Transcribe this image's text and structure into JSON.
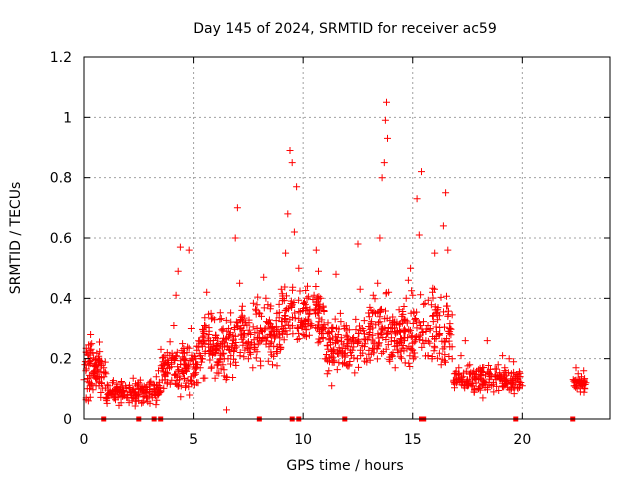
{
  "chart_data": {
    "type": "scatter",
    "title": "Day 145 of 2024, SRMTID for receiver ac59",
    "xlabel": "GPS time / hours",
    "ylabel": "SRMTID / TECUs",
    "xlim": [
      0,
      24
    ],
    "ylim": [
      0,
      1.2
    ],
    "xticks": [
      0,
      5,
      10,
      15,
      20
    ],
    "yticks": [
      0,
      0.2,
      0.4,
      0.6,
      0.8,
      1,
      1.2
    ],
    "ytick_labels": [
      "0",
      "0.2",
      "0.4",
      "0.6",
      "0.8",
      "1",
      "1.2"
    ],
    "grid": true,
    "marker": "+",
    "color": "#ff0000",
    "series": [
      {
        "name": "SRMTID",
        "points": [
          [
            0.0,
            0.13
          ],
          [
            0.1,
            0.07
          ],
          [
            0.15,
            0.1
          ],
          [
            0.2,
            0.06
          ],
          [
            0.25,
            0.12
          ],
          [
            0.3,
            0.28
          ],
          [
            0.35,
            0.25
          ],
          [
            0.4,
            0.22
          ],
          [
            0.45,
            0.15
          ],
          [
            0.5,
            0.18
          ],
          [
            0.55,
            0.11
          ],
          [
            0.6,
            0.16
          ],
          [
            0.7,
            0.14
          ],
          [
            0.8,
            0.12
          ],
          [
            0.9,
            0.17
          ],
          [
            1.0,
            0.15
          ],
          [
            1.1,
            0.11
          ],
          [
            1.2,
            0.09
          ],
          [
            1.3,
            0.12
          ],
          [
            1.4,
            0.07
          ],
          [
            1.5,
            0.1
          ],
          [
            1.6,
            0.08
          ],
          [
            1.7,
            0.12
          ],
          [
            1.8,
            0.09
          ],
          [
            1.9,
            0.11
          ],
          [
            2.0,
            0.07
          ],
          [
            2.1,
            0.1
          ],
          [
            2.2,
            0.06
          ],
          [
            2.3,
            0.09
          ],
          [
            2.4,
            0.08
          ],
          [
            2.5,
            0.12
          ],
          [
            2.6,
            0.1
          ],
          [
            2.7,
            0.06
          ],
          [
            2.8,
            0.09
          ],
          [
            2.9,
            0.07
          ],
          [
            3.0,
            0.12
          ],
          [
            3.1,
            0.08
          ],
          [
            3.2,
            0.1
          ],
          [
            3.3,
            0.14
          ],
          [
            3.4,
            0.16
          ],
          [
            3.5,
            0.09
          ],
          [
            3.6,
            0.18
          ],
          [
            3.7,
            0.13
          ],
          [
            3.8,
            0.22
          ],
          [
            3.9,
            0.17
          ],
          [
            4.0,
            0.2
          ],
          [
            4.1,
            0.31
          ],
          [
            4.2,
            0.41
          ],
          [
            4.3,
            0.49
          ],
          [
            4.4,
            0.57
          ],
          [
            4.5,
            0.25
          ],
          [
            4.6,
            0.18
          ],
          [
            4.7,
            0.22
          ],
          [
            4.8,
            0.56
          ],
          [
            4.9,
            0.3
          ],
          [
            5.0,
            0.15
          ],
          [
            5.1,
            0.2
          ],
          [
            5.2,
            0.12
          ],
          [
            5.3,
            0.17
          ],
          [
            5.4,
            0.24
          ],
          [
            5.5,
            0.31
          ],
          [
            5.6,
            0.42
          ],
          [
            5.7,
            0.28
          ],
          [
            5.8,
            0.35
          ],
          [
            5.9,
            0.22
          ],
          [
            6.0,
            0.27
          ],
          [
            6.1,
            0.18
          ],
          [
            6.2,
            0.33
          ],
          [
            6.3,
            0.25
          ],
          [
            6.4,
            0.2
          ],
          [
            6.5,
            0.03
          ],
          [
            6.6,
            0.3
          ],
          [
            6.7,
            0.21
          ],
          [
            6.8,
            0.26
          ],
          [
            6.9,
            0.6
          ],
          [
            7.0,
            0.7
          ],
          [
            7.1,
            0.45
          ],
          [
            7.2,
            0.36
          ],
          [
            7.3,
            0.31
          ],
          [
            7.4,
            0.25
          ],
          [
            7.5,
            0.2
          ],
          [
            7.6,
            0.28
          ],
          [
            7.7,
            0.17
          ],
          [
            7.8,
            0.23
          ],
          [
            7.9,
            0.3
          ],
          [
            8.0,
            0.27
          ],
          [
            8.1,
            0.34
          ],
          [
            8.2,
            0.47
          ],
          [
            8.3,
            0.4
          ],
          [
            8.4,
            0.32
          ],
          [
            8.5,
            0.25
          ],
          [
            8.6,
            0.18
          ],
          [
            8.7,
            0.29
          ],
          [
            8.8,
            0.35
          ],
          [
            8.9,
            0.38
          ],
          [
            9.0,
            0.43
          ],
          [
            9.1,
            0.3
          ],
          [
            9.2,
            0.55
          ],
          [
            9.3,
            0.68
          ],
          [
            9.4,
            0.89
          ],
          [
            9.5,
            0.85
          ],
          [
            9.6,
            0.62
          ],
          [
            9.7,
            0.77
          ],
          [
            9.8,
            0.5
          ],
          [
            9.9,
            0.32
          ],
          [
            10.0,
            0.28
          ],
          [
            10.1,
            0.38
          ],
          [
            10.2,
            0.44
          ],
          [
            10.3,
            0.35
          ],
          [
            10.4,
            0.31
          ],
          [
            10.5,
            0.41
          ],
          [
            10.6,
            0.56
          ],
          [
            10.7,
            0.49
          ],
          [
            10.8,
            0.4
          ],
          [
            10.9,
            0.27
          ],
          [
            11.0,
            0.2
          ],
          [
            11.1,
            0.15
          ],
          [
            11.2,
            0.19
          ],
          [
            11.3,
            0.11
          ],
          [
            11.4,
            0.23
          ],
          [
            11.5,
            0.48
          ],
          [
            11.6,
            0.28
          ],
          [
            11.7,
            0.35
          ],
          [
            11.8,
            0.22
          ],
          [
            11.9,
            0.3
          ],
          [
            12.0,
            0.25
          ],
          [
            12.1,
            0.18
          ],
          [
            12.2,
            0.21
          ],
          [
            12.3,
            0.27
          ],
          [
            12.4,
            0.33
          ],
          [
            12.5,
            0.58
          ],
          [
            12.6,
            0.43
          ],
          [
            12.7,
            0.3
          ],
          [
            12.8,
            0.24
          ],
          [
            12.9,
            0.2
          ],
          [
            13.0,
            0.28
          ],
          [
            13.1,
            0.36
          ],
          [
            13.2,
            0.41
          ],
          [
            13.3,
            0.35
          ],
          [
            13.4,
            0.45
          ],
          [
            13.5,
            0.6
          ],
          [
            13.6,
            0.8
          ],
          [
            13.7,
            0.85
          ],
          [
            13.75,
            0.99
          ],
          [
            13.8,
            1.05
          ],
          [
            13.85,
            0.93
          ],
          [
            13.9,
            0.42
          ],
          [
            14.0,
            0.3
          ],
          [
            14.1,
            0.22
          ],
          [
            14.2,
            0.17
          ],
          [
            14.3,
            0.25
          ],
          [
            14.4,
            0.29
          ],
          [
            14.5,
            0.34
          ],
          [
            14.6,
            0.27
          ],
          [
            14.7,
            0.4
          ],
          [
            14.8,
            0.46
          ],
          [
            14.9,
            0.5
          ],
          [
            15.0,
            0.41
          ],
          [
            15.1,
            0.33
          ],
          [
            15.2,
            0.73
          ],
          [
            15.3,
            0.61
          ],
          [
            15.4,
            0.82
          ],
          [
            15.5,
            0.38
          ],
          [
            15.6,
            0.26
          ],
          [
            15.7,
            0.21
          ],
          [
            15.8,
            0.3
          ],
          [
            15.9,
            0.42
          ],
          [
            16.0,
            0.55
          ],
          [
            16.1,
            0.35
          ],
          [
            16.2,
            0.28
          ],
          [
            16.3,
            0.18
          ],
          [
            16.4,
            0.64
          ],
          [
            16.5,
            0.75
          ],
          [
            16.6,
            0.56
          ],
          [
            16.7,
            0.3
          ],
          [
            16.8,
            0.2
          ],
          [
            16.9,
            0.15
          ],
          [
            17.0,
            0.12
          ],
          [
            17.1,
            0.17
          ],
          [
            17.2,
            0.21
          ],
          [
            17.3,
            0.14
          ],
          [
            17.4,
            0.26
          ],
          [
            17.5,
            0.13
          ],
          [
            17.6,
            0.18
          ],
          [
            17.7,
            0.11
          ],
          [
            17.8,
            0.09
          ],
          [
            17.9,
            0.14
          ],
          [
            18.0,
            0.1
          ],
          [
            18.1,
            0.16
          ],
          [
            18.2,
            0.07
          ],
          [
            18.3,
            0.12
          ],
          [
            18.4,
            0.26
          ],
          [
            18.5,
            0.15
          ],
          [
            18.6,
            0.11
          ],
          [
            18.7,
            0.09
          ],
          [
            18.8,
            0.13
          ],
          [
            18.9,
            0.18
          ],
          [
            19.0,
            0.14
          ],
          [
            19.1,
            0.21
          ],
          [
            19.2,
            0.17
          ],
          [
            19.3,
            0.12
          ],
          [
            19.4,
            0.2
          ],
          [
            19.5,
            0.15
          ],
          [
            19.6,
            0.19
          ],
          [
            19.7,
            0.12
          ],
          [
            19.8,
            0.1
          ],
          [
            19.9,
            0.14
          ],
          [
            20.0,
            0.11
          ],
          [
            22.4,
            0.12
          ],
          [
            22.45,
            0.17
          ],
          [
            22.5,
            0.1
          ],
          [
            22.55,
            0.15
          ],
          [
            22.6,
            0.13
          ],
          [
            22.65,
            0.09
          ],
          [
            22.7,
            0.14
          ],
          [
            22.75,
            0.11
          ],
          [
            22.8,
            0.16
          ],
          [
            22.85,
            0.1
          ],
          [
            22.9,
            0.12
          ]
        ]
      }
    ],
    "baseline_markers": [
      0.9,
      2.5,
      3.2,
      3.5,
      8.0,
      9.5,
      9.8,
      11.9,
      15.4,
      15.5,
      19.7,
      22.3
    ],
    "scatter_density": [
      {
        "from": 0.0,
        "to": 1.0,
        "center": 0.16,
        "spread": 0.08,
        "count": 80
      },
      {
        "from": 1.0,
        "to": 3.5,
        "center": 0.09,
        "spread": 0.035,
        "count": 140
      },
      {
        "from": 3.5,
        "to": 5.2,
        "center": 0.17,
        "spread": 0.07,
        "count": 120
      },
      {
        "from": 5.2,
        "to": 7.0,
        "center": 0.24,
        "spread": 0.09,
        "count": 130
      },
      {
        "from": 7.0,
        "to": 9.0,
        "center": 0.28,
        "spread": 0.09,
        "count": 120
      },
      {
        "from": 9.0,
        "to": 11.0,
        "center": 0.33,
        "spread": 0.09,
        "count": 130
      },
      {
        "from": 11.0,
        "to": 12.9,
        "center": 0.24,
        "spread": 0.08,
        "count": 110
      },
      {
        "from": 12.9,
        "to": 14.6,
        "center": 0.28,
        "spread": 0.1,
        "count": 120
      },
      {
        "from": 14.6,
        "to": 16.8,
        "center": 0.3,
        "spread": 0.11,
        "count": 130
      },
      {
        "from": 16.8,
        "to": 20.0,
        "center": 0.13,
        "spread": 0.04,
        "count": 160
      },
      {
        "from": 22.3,
        "to": 22.9,
        "center": 0.12,
        "spread": 0.025,
        "count": 30
      }
    ]
  }
}
